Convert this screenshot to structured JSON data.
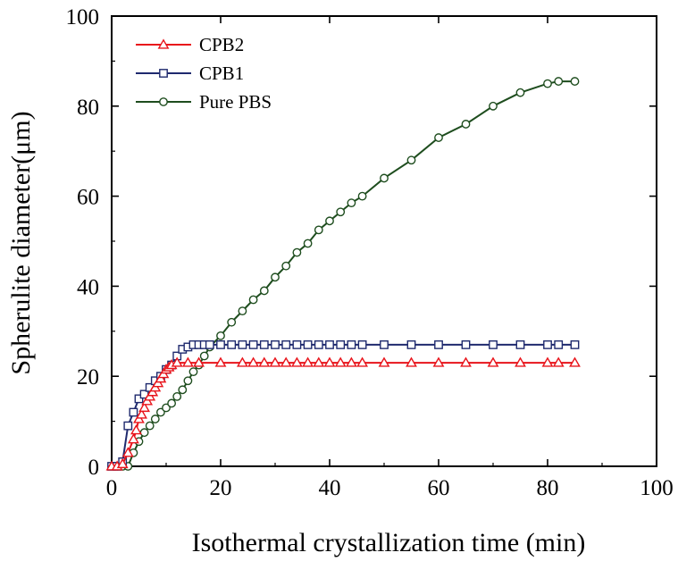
{
  "chart_data": {
    "type": "line",
    "title": "",
    "xlabel": "Isothermal crystallization time (min)",
    "ylabel": "Spherulite diameter(μm)",
    "xlim": [
      0,
      100
    ],
    "ylim": [
      0,
      100
    ],
    "xticks": [
      "0",
      "20",
      "40",
      "60",
      "80",
      "100"
    ],
    "yticks": [
      "0",
      "20",
      "40",
      "60",
      "80",
      "100"
    ],
    "grid": false,
    "legend_position": "top-left",
    "series": [
      {
        "name": "CPB2",
        "color": "#e8141b",
        "marker": "triangle",
        "x": [
          0,
          1,
          2,
          3,
          4,
          4.5,
          5,
          5.5,
          6,
          6.5,
          7,
          7.5,
          8,
          8.5,
          9,
          9.5,
          10,
          10.5,
          11,
          12,
          14,
          16,
          20,
          24,
          26,
          28,
          30,
          32,
          34,
          36,
          38,
          40,
          42,
          44,
          46,
          50,
          55,
          60,
          65,
          70,
          75,
          80,
          82,
          85
        ],
        "y": [
          0,
          0,
          0.5,
          3,
          6,
          8,
          10.5,
          11.5,
          13,
          14.5,
          15.5,
          16.5,
          17.5,
          18.5,
          19.5,
          20.5,
          21.5,
          22,
          22.5,
          23,
          23,
          23,
          23,
          23,
          23,
          23,
          23,
          23,
          23,
          23,
          23,
          23,
          23,
          23,
          23,
          23,
          23,
          23,
          23,
          23,
          23,
          23,
          23,
          23
        ]
      },
      {
        "name": "CPB1",
        "color": "#1f2a6e",
        "marker": "square",
        "x": [
          0,
          1,
          2,
          3,
          4,
          5,
          6,
          7,
          8,
          9,
          10,
          11,
          12,
          13,
          14,
          15,
          16,
          17,
          18,
          20,
          22,
          24,
          26,
          28,
          30,
          32,
          34,
          36,
          38,
          40,
          42,
          44,
          46,
          50,
          55,
          60,
          65,
          70,
          75,
          80,
          82,
          85
        ],
        "y": [
          0,
          0,
          1,
          9,
          12,
          15,
          16,
          17.5,
          19,
          20,
          21.5,
          22.5,
          24.5,
          26,
          26.5,
          27,
          27,
          27,
          27,
          27,
          27,
          27,
          27,
          27,
          27,
          27,
          27,
          27,
          27,
          27,
          27,
          27,
          27,
          27,
          27,
          27,
          27,
          27,
          27,
          27,
          27,
          27
        ]
      },
      {
        "name": "Pure PBS",
        "color": "#1e4d1e",
        "marker": "circle",
        "x": [
          1,
          2,
          3,
          4,
          5,
          6,
          7,
          8,
          9,
          10,
          11,
          12,
          13,
          14,
          15,
          16,
          17,
          18,
          20,
          22,
          24,
          26,
          28,
          30,
          32,
          34,
          36,
          38,
          40,
          42,
          44,
          46,
          50,
          55,
          60,
          65,
          70,
          75,
          80,
          82,
          85
        ],
        "y": [
          0,
          0,
          0,
          3,
          5.5,
          7.5,
          9,
          10.5,
          12,
          13,
          14,
          15.5,
          17,
          19,
          21,
          22.5,
          24.5,
          26.5,
          29,
          32,
          34.5,
          37,
          39,
          42,
          44.5,
          47.5,
          49.5,
          52.5,
          54.5,
          56.5,
          58.5,
          60,
          64,
          68,
          73,
          76,
          80,
          83,
          85,
          85.5,
          85.5
        ]
      }
    ]
  }
}
